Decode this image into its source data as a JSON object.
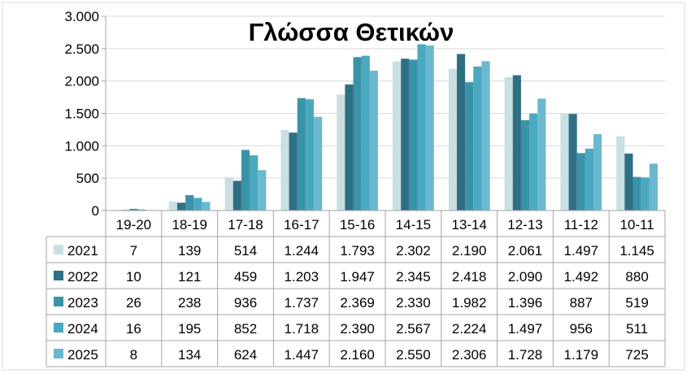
{
  "chart_data": {
    "type": "bar",
    "title": "Γλώσσα Θετικών",
    "categories": [
      "19-20",
      "18-19",
      "17-18",
      "16-17",
      "15-16",
      "14-15",
      "13-14",
      "12-13",
      "11-12",
      "10-11"
    ],
    "ylim": [
      0,
      3000
    ],
    "y_ticks": [
      0,
      500,
      1000,
      1500,
      2000,
      2500,
      3000
    ],
    "y_tick_labels": [
      "0",
      "500",
      "1.000",
      "1.500",
      "2.000",
      "2.500",
      "3.000"
    ],
    "grid": "horizontal",
    "legend": "data-table",
    "series": [
      {
        "name": "2021",
        "color": "#c9dfe4",
        "values": [
          7,
          139,
          514,
          1244,
          1793,
          2302,
          2190,
          2061,
          1497,
          1145
        ],
        "labels": [
          "7",
          "139",
          "514",
          "1.244",
          "1.793",
          "2.302",
          "2.190",
          "2.061",
          "1.497",
          "1.145"
        ]
      },
      {
        "name": "2022",
        "color": "#2f6f84",
        "values": [
          10,
          121,
          459,
          1203,
          1947,
          2345,
          2418,
          2090,
          1492,
          880
        ],
        "labels": [
          "10",
          "121",
          "459",
          "1.203",
          "1.947",
          "2.345",
          "2.418",
          "2.090",
          "1.492",
          "880"
        ]
      },
      {
        "name": "2023",
        "color": "#3a93a6",
        "values": [
          26,
          238,
          936,
          1737,
          2369,
          2330,
          1982,
          1396,
          887,
          519
        ],
        "labels": [
          "26",
          "238",
          "936",
          "1.737",
          "2.369",
          "2.330",
          "1.982",
          "1.396",
          "887",
          "519"
        ]
      },
      {
        "name": "2024",
        "color": "#4aa9c0",
        "values": [
          16,
          195,
          852,
          1718,
          2390,
          2567,
          2224,
          1497,
          956,
          511
        ],
        "labels": [
          "16",
          "195",
          "852",
          "1.718",
          "2.390",
          "2.567",
          "2.224",
          "1.497",
          "956",
          "511"
        ]
      },
      {
        "name": "2025",
        "color": "#6ab9d0",
        "values": [
          8,
          134,
          624,
          1447,
          2160,
          2550,
          2306,
          1728,
          1179,
          725
        ],
        "labels": [
          "8",
          "134",
          "624",
          "1.447",
          "2.160",
          "2.550",
          "2.306",
          "1.728",
          "1.179",
          "725"
        ]
      }
    ]
  }
}
